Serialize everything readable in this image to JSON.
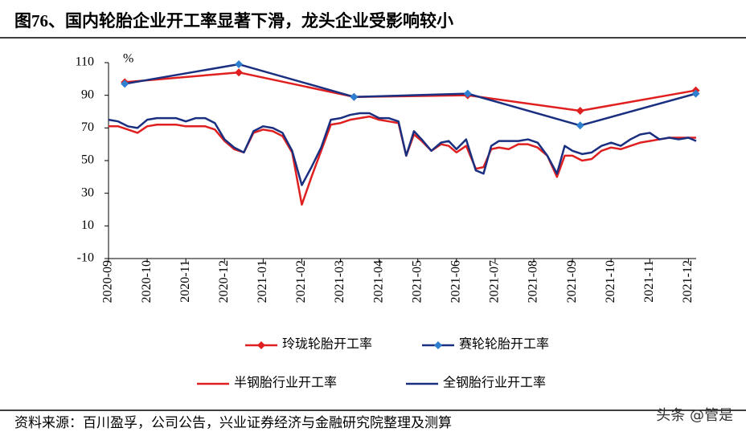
{
  "chart_data": {
    "type": "line",
    "title": "图76、国内轮胎企业开工率显著下滑，龙头企业受影响较小",
    "y_unit": "%",
    "source": "资料来源：百川盈孚，公司公告，兴业证券经济与金融研究院整理及测算",
    "watermark": "头条 @管是",
    "xlim": [
      0,
      15.2
    ],
    "xticks": [
      {
        "value": 0,
        "label": "2020-09"
      },
      {
        "value": 1,
        "label": "2020-10"
      },
      {
        "value": 2,
        "label": "2020-11"
      },
      {
        "value": 3,
        "label": "2020-12"
      },
      {
        "value": 4,
        "label": "2021-01"
      },
      {
        "value": 5,
        "label": "2021-02"
      },
      {
        "value": 6,
        "label": "2021-03"
      },
      {
        "value": 7,
        "label": "2021-04"
      },
      {
        "value": 8,
        "label": "2021-05"
      },
      {
        "value": 9,
        "label": "2021-06"
      },
      {
        "value": 10,
        "label": "2021-07"
      },
      {
        "value": 11,
        "label": "2021-08"
      },
      {
        "value": 12,
        "label": "2021-09"
      },
      {
        "value": 13,
        "label": "2021-10"
      },
      {
        "value": 14,
        "label": "2021-11"
      },
      {
        "value": 15,
        "label": "2021-12"
      }
    ],
    "ylim": [
      -10,
      110
    ],
    "yticks": [
      -10,
      10,
      30,
      50,
      70,
      90,
      110
    ],
    "series": [
      {
        "name": "玲珑轮胎开工率",
        "color": "#e02020",
        "marker": "diamond",
        "x": [
          0.42,
          3.37,
          6.35,
          9.29,
          12.2,
          15.19
        ],
        "values": [
          98,
          104,
          89,
          90,
          80.5,
          93
        ]
      },
      {
        "name": "赛轮轮胎开工率",
        "color": "#2f7fd0",
        "marker": "diamond",
        "line_color": "#1a2f80",
        "x": [
          0.42,
          3.37,
          6.35,
          9.29,
          12.2,
          15.19
        ],
        "values": [
          97,
          109,
          89,
          91,
          71.5,
          91
        ]
      },
      {
        "name": "半钢胎行业开工率",
        "color": "#e02020",
        "x": [
          0,
          0.25,
          0.5,
          0.75,
          1,
          1.25,
          1.5,
          1.75,
          2,
          2.25,
          2.5,
          2.75,
          3,
          3.25,
          3.5,
          3.75,
          4,
          4.25,
          4.5,
          4.75,
          5,
          5.25,
          5.5,
          5.75,
          6,
          6.25,
          6.5,
          6.75,
          7,
          7.25,
          7.5,
          7.7,
          7.9,
          8.1,
          8.35,
          8.6,
          8.8,
          9,
          9.25,
          9.5,
          9.7,
          9.9,
          10.1,
          10.35,
          10.6,
          10.85,
          11.1,
          11.35,
          11.6,
          11.8,
          12,
          12.25,
          12.5,
          12.75,
          13,
          13.25,
          13.5,
          13.75,
          14,
          14.25,
          14.5,
          14.75,
          15,
          15.2
        ],
        "values": [
          71,
          71,
          69,
          67,
          71,
          72,
          72,
          72,
          71,
          71,
          71,
          69,
          62,
          57,
          55,
          67,
          69,
          68,
          65,
          55,
          23,
          40,
          56,
          72,
          73,
          75,
          76,
          77,
          75,
          74,
          73,
          53,
          66,
          62,
          56,
          60,
          59,
          55,
          59,
          45,
          46,
          57,
          58,
          57,
          60,
          60,
          58,
          53,
          40,
          53,
          53,
          50,
          51,
          56,
          58,
          57,
          59,
          61,
          62,
          63,
          64,
          64,
          64,
          64
        ]
      },
      {
        "name": "全钢胎行业开工率",
        "color": "#1a2f80",
        "x": [
          0,
          0.25,
          0.5,
          0.75,
          1,
          1.25,
          1.5,
          1.75,
          2,
          2.25,
          2.5,
          2.75,
          3,
          3.25,
          3.5,
          3.75,
          4,
          4.25,
          4.5,
          4.75,
          5,
          5.25,
          5.5,
          5.75,
          6,
          6.25,
          6.5,
          6.75,
          7,
          7.25,
          7.5,
          7.7,
          7.9,
          8.1,
          8.35,
          8.6,
          8.8,
          9,
          9.25,
          9.5,
          9.7,
          9.9,
          10.1,
          10.35,
          10.6,
          10.85,
          11.1,
          11.35,
          11.6,
          11.8,
          12,
          12.25,
          12.5,
          12.75,
          13,
          13.25,
          13.5,
          13.75,
          14,
          14.25,
          14.5,
          14.75,
          15,
          15.2
        ],
        "values": [
          75,
          74,
          71,
          70,
          75,
          76,
          76,
          76,
          74,
          76,
          76,
          73,
          63,
          58,
          55,
          68,
          71,
          70,
          67,
          56,
          35,
          46,
          58,
          75,
          76,
          78,
          79,
          79,
          76,
          76,
          74,
          53,
          68,
          63,
          56,
          61,
          62,
          57,
          63,
          44,
          42,
          59,
          62,
          62,
          62,
          63,
          61,
          53,
          42,
          59,
          56,
          54,
          55,
          59,
          61,
          59,
          63,
          66,
          67,
          63,
          64,
          63,
          64,
          62
        ]
      }
    ]
  }
}
